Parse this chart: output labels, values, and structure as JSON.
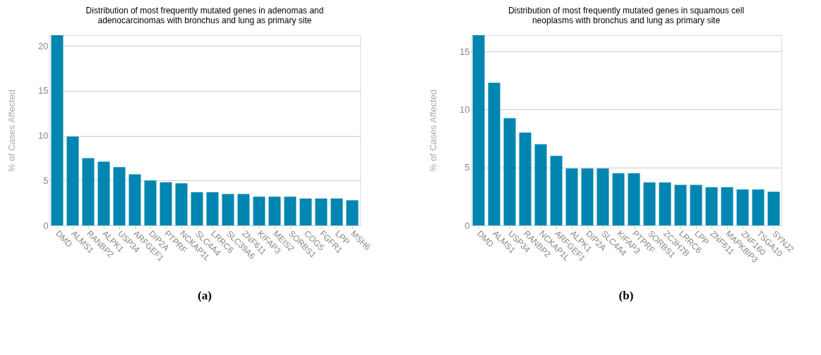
{
  "chart_data": [
    {
      "type": "bar",
      "title": [
        "Distribution of most frequently mutated genes in adenomas and",
        "adenocarcinomas with bronchus and lung as primary site"
      ],
      "ylabel": "% of Cases Affected",
      "categories": [
        "DMD",
        "ALMS1",
        "RANBP2",
        "ALPK1",
        "USP34",
        "ARFGEF1",
        "DIP2A",
        "PTPRF",
        "NCKAP1L",
        "SLC4A4",
        "LRRC6",
        "SLC39A6",
        "ZNF611",
        "KIFAP3",
        "MEIS2",
        "SORBS1",
        "COG5",
        "FGFR1",
        "LPP",
        "MSH6"
      ],
      "values": [
        21.2,
        9.9,
        7.5,
        7.1,
        6.5,
        5.7,
        5.0,
        4.8,
        4.7,
        3.7,
        3.7,
        3.5,
        3.5,
        3.2,
        3.2,
        3.2,
        3.0,
        3.0,
        3.0,
        2.8
      ],
      "color": "#0086b0",
      "ylim": [
        0,
        21.2
      ],
      "yticks": [
        0,
        5,
        10,
        15,
        20
      ],
      "grid": "y",
      "annotations": [
        "(a)"
      ]
    },
    {
      "type": "bar",
      "title": [
        "Distribution of most frequently mutated genes in squamous cell",
        "neoplasms with bronchus and lung as primary site"
      ],
      "ylabel": "% of Cases Affected",
      "categories": [
        "DMD",
        "ALMS1",
        "USP34",
        "RANBP2",
        "NCKAP1L",
        "ARFGEF1",
        "ALPK1",
        "DIP2A",
        "SLC4A4",
        "KIFAP3",
        "PTPRF",
        "SORBS1",
        "ZC3H7B",
        "LRRC6",
        "LPP",
        "ZNF611",
        "MAPK8IP3",
        "ZNF160",
        "TSGA10",
        "SYNJ2"
      ],
      "values": [
        16.4,
        12.3,
        9.25,
        8.0,
        7.0,
        6.0,
        4.9,
        4.9,
        4.9,
        4.5,
        4.5,
        3.7,
        3.7,
        3.5,
        3.5,
        3.3,
        3.3,
        3.1,
        3.1,
        2.9
      ],
      "color": "#0086b0",
      "ylim": [
        0,
        16.4
      ],
      "yticks": [
        0,
        5,
        10,
        15
      ],
      "grid": "y",
      "annotations": [
        "(b)"
      ]
    }
  ]
}
